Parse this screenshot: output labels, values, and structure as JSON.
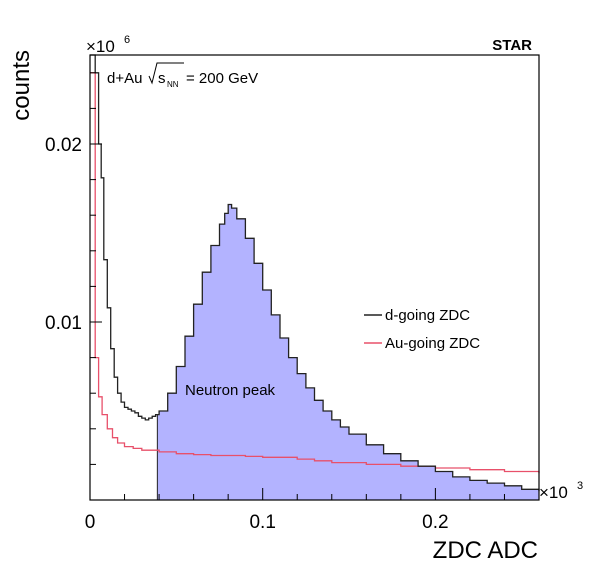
{
  "chart_data": {
    "type": "line",
    "experiment": "STAR",
    "system_label": {
      "prefix": "d+Au",
      "sqrt": "s",
      "sub": "NN",
      "suffix": "= 200 GeV"
    },
    "xlabel": "ZDC ADC",
    "ylabel": "counts",
    "x_multiplier": {
      "base": "×10",
      "exp": "3"
    },
    "y_multiplier": {
      "base": "×10",
      "exp": "6"
    },
    "xlim": [
      0,
      0.26
    ],
    "ylim": [
      0,
      0.025
    ],
    "x_ticks": [
      0,
      0.1,
      0.2
    ],
    "x_tick_labels": [
      "0",
      "0.1",
      "0.2"
    ],
    "y_ticks": [
      0.01,
      0.02
    ],
    "y_tick_labels": [
      "0.01",
      "0.02"
    ],
    "annotation": "Neutron peak",
    "shaded_region": {
      "from_x": 0.039,
      "to_x": 0.26,
      "series": "d-going ZDC",
      "color": "#b3b3ff"
    },
    "series": [
      {
        "name": "d-going ZDC",
        "color": "#222222",
        "x": [
          0.0,
          0.003,
          0.005,
          0.0065,
          0.008,
          0.01,
          0.012,
          0.014,
          0.016,
          0.018,
          0.02,
          0.022,
          0.024,
          0.026,
          0.028,
          0.03,
          0.032,
          0.034,
          0.036,
          0.038,
          0.04,
          0.045,
          0.05,
          0.055,
          0.06,
          0.065,
          0.07,
          0.075,
          0.078,
          0.08,
          0.082,
          0.085,
          0.09,
          0.095,
          0.1,
          0.105,
          0.11,
          0.115,
          0.12,
          0.125,
          0.13,
          0.135,
          0.14,
          0.145,
          0.15,
          0.16,
          0.17,
          0.18,
          0.19,
          0.2,
          0.21,
          0.22,
          0.23,
          0.24,
          0.25,
          0.26
        ],
        "y": [
          0.026,
          0.024,
          0.02,
          0.0181,
          0.0135,
          0.0108,
          0.0085,
          0.0069,
          0.006,
          0.0055,
          0.0052,
          0.0051,
          0.005,
          0.0049,
          0.0047,
          0.0046,
          0.0045,
          0.0046,
          0.0047,
          0.0048,
          0.005,
          0.006,
          0.0075,
          0.0092,
          0.011,
          0.0128,
          0.0143,
          0.0155,
          0.0161,
          0.0166,
          0.0164,
          0.0158,
          0.0147,
          0.0133,
          0.0118,
          0.0104,
          0.0091,
          0.008,
          0.0071,
          0.0063,
          0.0056,
          0.005,
          0.0045,
          0.0041,
          0.0037,
          0.0031,
          0.0026,
          0.0022,
          0.0019,
          0.0016,
          0.0013,
          0.0011,
          0.00095,
          0.0008,
          0.0006,
          0.0005
        ]
      },
      {
        "name": "Au-going ZDC",
        "color": "#e8506a",
        "x": [
          0.0,
          0.003,
          0.005,
          0.007,
          0.01,
          0.013,
          0.016,
          0.02,
          0.025,
          0.03,
          0.04,
          0.05,
          0.06,
          0.07,
          0.08,
          0.09,
          0.1,
          0.11,
          0.12,
          0.13,
          0.14,
          0.15,
          0.16,
          0.17,
          0.18,
          0.19,
          0.2,
          0.21,
          0.22,
          0.23,
          0.24,
          0.25,
          0.26
        ],
        "y": [
          0.024,
          0.008,
          0.0058,
          0.0048,
          0.004,
          0.0035,
          0.0032,
          0.003,
          0.0029,
          0.0028,
          0.0027,
          0.0026,
          0.00255,
          0.0025,
          0.0025,
          0.00245,
          0.0024,
          0.0024,
          0.0023,
          0.0022,
          0.0021,
          0.0021,
          0.002,
          0.002,
          0.0019,
          0.0019,
          0.0018,
          0.0018,
          0.0017,
          0.0017,
          0.0016,
          0.0016,
          0.0015
        ]
      }
    ]
  }
}
